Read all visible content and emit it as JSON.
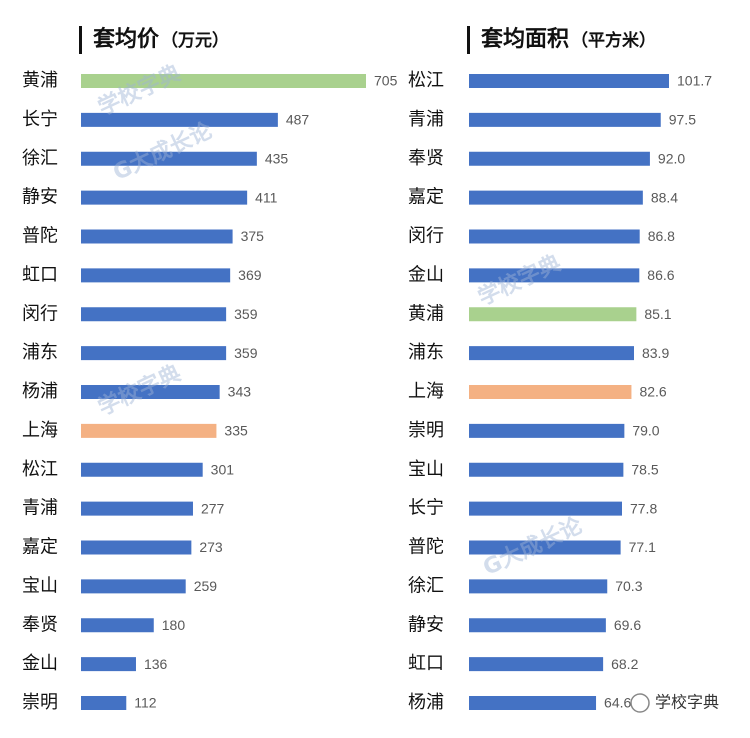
{
  "chart_data": [
    {
      "type": "hbar",
      "title": "套均价",
      "unit": "（万元）",
      "categories": [
        "黄浦",
        "长宁",
        "徐汇",
        "静安",
        "普陀",
        "虹口",
        "闵行",
        "浦东",
        "杨浦",
        "上海",
        "松江",
        "青浦",
        "嘉定",
        "宝山",
        "奉贤",
        "金山",
        "崇明"
      ],
      "values": [
        705,
        487,
        435,
        411,
        375,
        369,
        359,
        359,
        343,
        335,
        301,
        277,
        273,
        259,
        180,
        136,
        112
      ],
      "colors": [
        "#a9d18e",
        "#4472c4",
        "#4472c4",
        "#4472c4",
        "#4472c4",
        "#4472c4",
        "#4472c4",
        "#4472c4",
        "#4472c4",
        "#f4b183",
        "#4472c4",
        "#4472c4",
        "#4472c4",
        "#4472c4",
        "#4472c4",
        "#4472c4",
        "#4472c4"
      ]
    },
    {
      "type": "hbar",
      "title": "套均面积",
      "unit": "（平方米）",
      "categories": [
        "松江",
        "青浦",
        "奉贤",
        "嘉定",
        "闵行",
        "金山",
        "黄浦",
        "浦东",
        "上海",
        "崇明",
        "宝山",
        "长宁",
        "普陀",
        "徐汇",
        "静安",
        "虹口",
        "杨浦"
      ],
      "values": [
        101.7,
        97.5,
        92,
        88.4,
        86.8,
        86.6,
        85.1,
        83.9,
        82.6,
        79,
        78.5,
        77.8,
        77.1,
        70.3,
        69.6,
        68.2,
        64.6
      ],
      "value_labels": [
        "101.7",
        "97.5",
        "92.0",
        "88.4",
        "86.8",
        "86.6",
        "85.1",
        "83.9",
        "82.6",
        "79.0",
        "78.5",
        "77.8",
        "77.1",
        "70.3",
        "69.6",
        "68.2",
        "64.6"
      ],
      "colors": [
        "#4472c4",
        "#4472c4",
        "#4472c4",
        "#4472c4",
        "#4472c4",
        "#4472c4",
        "#a9d18e",
        "#4472c4",
        "#f4b183",
        "#4472c4",
        "#4472c4",
        "#4472c4",
        "#4472c4",
        "#4472c4",
        "#4472c4",
        "#4472c4",
        "#4472c4"
      ]
    }
  ],
  "watermark": {
    "brand": "学校字典",
    "sub": "G大成长论"
  }
}
